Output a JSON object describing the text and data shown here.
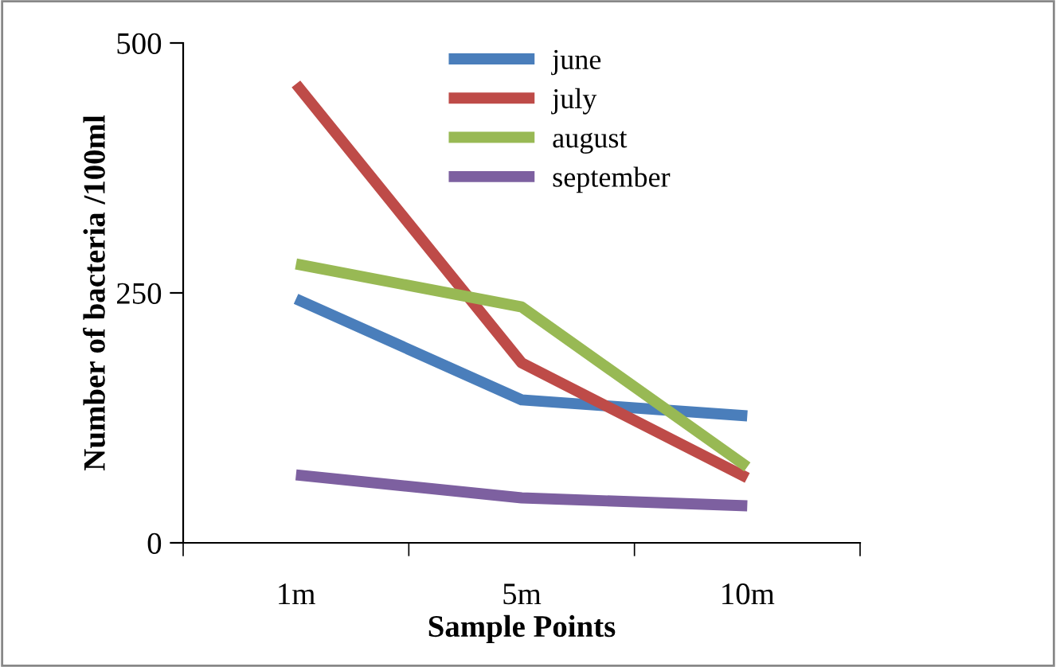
{
  "chart_data": {
    "type": "line",
    "xlabel": "Sample Points",
    "ylabel": "Number of bacteria /100ml",
    "categories": [
      "1m",
      "5m",
      "10m"
    ],
    "series": [
      {
        "name": "june",
        "color": "#4a7ebb",
        "values": [
          244,
          143,
          127
        ]
      },
      {
        "name": "july",
        "color": "#be4b48",
        "values": [
          459,
          180,
          65
        ]
      },
      {
        "name": "august",
        "color": "#98b954",
        "values": [
          279,
          236,
          76
        ]
      },
      {
        "name": "september",
        "color": "#7d60a0",
        "values": [
          68,
          45,
          37
        ]
      }
    ],
    "ylim": [
      0,
      500
    ],
    "yticks": [
      0,
      250,
      500
    ],
    "grid": false,
    "legend": "top",
    "marker": "none",
    "line_style": "solid"
  }
}
